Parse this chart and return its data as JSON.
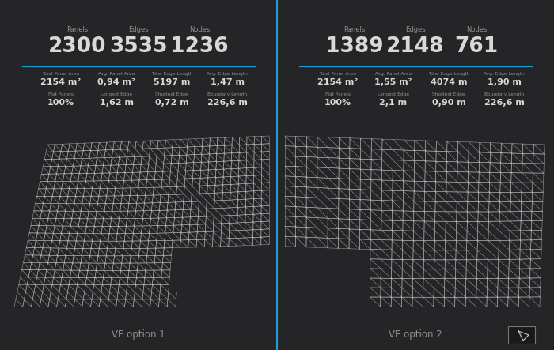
{
  "bg_color": "#252528",
  "divider_color": "#1e9cd7",
  "text_white": "#d8d8d8",
  "text_gray": "#909090",
  "grid_color": "#c8c8c8",
  "grid_alpha": 0.7,
  "grid_lw": 0.4,
  "opt1": {
    "label": "VE option 1",
    "panels_label": "Panels",
    "edges_label": "Edges",
    "nodes_label": "Nodes",
    "panels": "2300",
    "edges": "3535",
    "nodes": "1236",
    "stats": [
      {
        "label": "Total Panel Area",
        "value": "2154 m²"
      },
      {
        "label": "Avg. Panel Area",
        "value": "0,94 m²"
      },
      {
        "label": "Total Edge Length",
        "value": "5197 m"
      },
      {
        "label": "Avg. Edge Length",
        "value": "1,47 m"
      }
    ],
    "stats2": [
      {
        "label": "Flat Panels",
        "value": "100%"
      },
      {
        "label": "Longest Edge",
        "value": "1,62 m"
      },
      {
        "label": "Shortest Edge",
        "value": "0,72 m"
      },
      {
        "label": "Boundary Length",
        "value": "226,6 m"
      }
    ]
  },
  "opt2": {
    "label": "VE option 2",
    "panels_label": "Panels",
    "edges_label": "Edges",
    "nodes_label": "Nodes",
    "panels": "1389",
    "edges": "2148",
    "nodes": "761",
    "stats": [
      {
        "label": "Total Panel Area",
        "value": "2154 m²"
      },
      {
        "label": "Avg. Panel Area",
        "value": "1,55 m²"
      },
      {
        "label": "Total Edge Length",
        "value": "4074 m"
      },
      {
        "label": "Avg. Edge Length",
        "value": "1,90 m"
      }
    ],
    "stats2": [
      {
        "label": "Flat Panels",
        "value": "100%"
      },
      {
        "label": "Longest Edge",
        "value": "2,1 m"
      },
      {
        "label": "Shortest Edge",
        "value": "0,90 m"
      },
      {
        "label": "Boundary Length",
        "value": "226,6 m"
      }
    ]
  }
}
